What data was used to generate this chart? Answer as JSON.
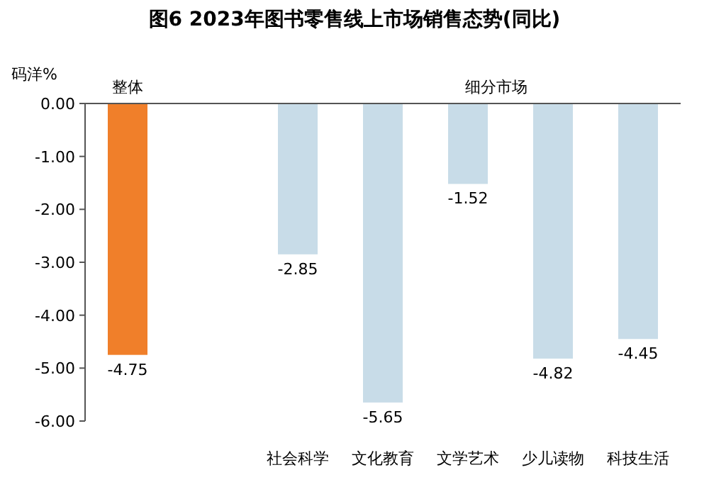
{
  "chart_data": {
    "type": "bar",
    "title": "图6  2023年图书零售线上市场销售态势(同比)",
    "ylabel": "码洋%",
    "categories": [
      "整体",
      null,
      "社会科学",
      "文化教育",
      "文学艺术",
      "少儿读物",
      "科技生活"
    ],
    "values": [
      -4.75,
      null,
      -2.85,
      -5.65,
      -1.52,
      -4.82,
      -4.45
    ],
    "colors": [
      "#f07f2a",
      null,
      "#c8dce8",
      "#c8dce8",
      "#c8dce8",
      "#c8dce8",
      "#c8dce8"
    ],
    "ylim": [
      -6,
      0
    ],
    "yticks": [
      {
        "value": 0,
        "label": "0.00"
      },
      {
        "value": -1,
        "label": "-1.00"
      },
      {
        "value": -2,
        "label": "-2.00"
      },
      {
        "value": -3,
        "label": "-3.00"
      },
      {
        "value": -4,
        "label": "-4.00"
      },
      {
        "value": -5,
        "label": "-5.00"
      },
      {
        "value": -6,
        "label": "-6.00"
      }
    ],
    "data_labels": true,
    "annotations": [
      "细分市场"
    ]
  }
}
